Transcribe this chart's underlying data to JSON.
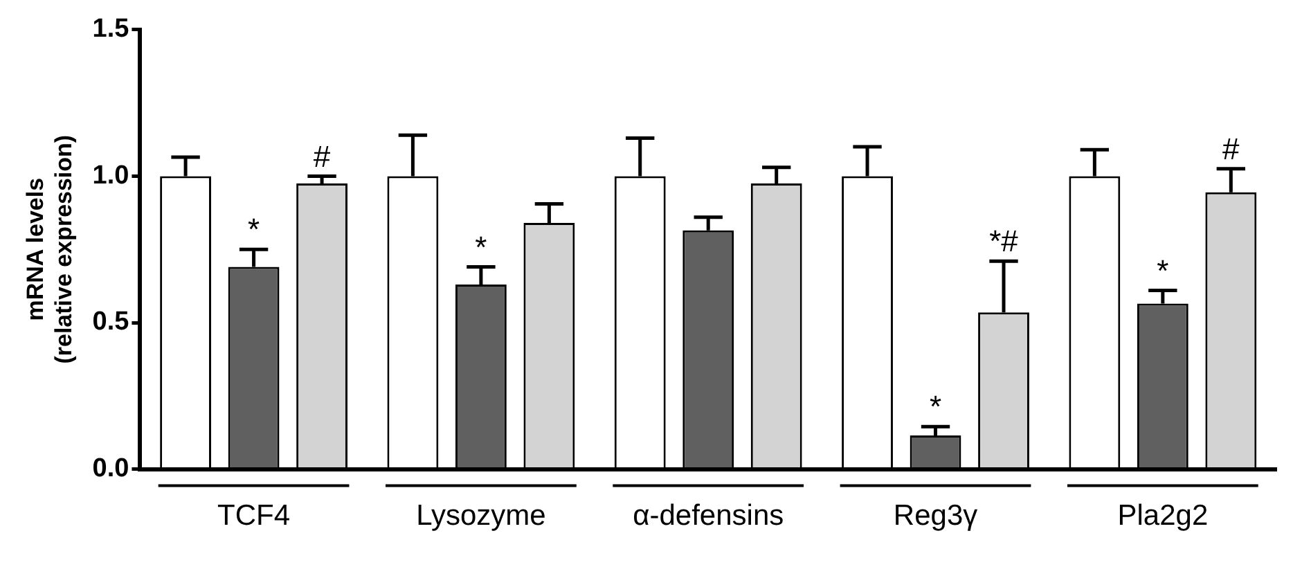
{
  "chart_data": {
    "type": "bar",
    "ylabel": "mRNA levels\n(relative expression)",
    "categories": [
      "TCF4",
      "Lysozyme",
      "α-defensins",
      "Reg3γ",
      "Pla2g2"
    ],
    "series": [
      {
        "color": "#ffffff",
        "values": [
          1.0,
          1.0,
          1.0,
          1.0,
          1.0
        ],
        "errors": [
          [
            1.0,
            1.065
          ],
          [
            1.0,
            1.14
          ],
          [
            1.0,
            1.13
          ],
          [
            1.0,
            1.1
          ],
          [
            1.0,
            1.09
          ]
        ]
      },
      {
        "color": "#606060",
        "values": [
          0.69,
          0.63,
          0.815,
          0.115,
          0.565
        ],
        "errors": [
          [
            0.69,
            0.75
          ],
          [
            0.63,
            0.69
          ],
          [
            0.815,
            0.86
          ],
          [
            0.115,
            0.145
          ],
          [
            0.565,
            0.61
          ]
        ],
        "value_labels": [
          "*",
          "*",
          null,
          "*",
          "*"
        ]
      },
      {
        "color": "#d3d3d3",
        "values": [
          0.975,
          0.84,
          0.975,
          0.535,
          0.945
        ],
        "errors": [
          [
            0.975,
            1.0
          ],
          [
            0.84,
            0.905
          ],
          [
            0.975,
            1.03
          ],
          [
            0.535,
            0.71
          ],
          [
            0.945,
            1.025
          ]
        ],
        "value_labels": [
          "#",
          null,
          null,
          "*#",
          "#"
        ]
      }
    ],
    "ylim": [
      0,
      1.5
    ],
    "yticks": [
      {
        "value": 0,
        "label": "0.0"
      },
      {
        "value": 0.5,
        "label": "0.5"
      },
      {
        "value": 1,
        "label": "1.0"
      },
      {
        "value": 1.5,
        "label": "1.5"
      }
    ],
    "grid": false,
    "legend": false
  }
}
